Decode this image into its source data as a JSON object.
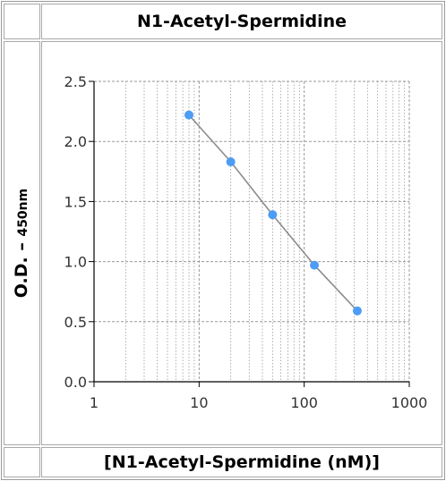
{
  "chart_data": {
    "type": "line",
    "title": "N1-Acetyl-Spermidine",
    "ylabel_main": "O.D. –",
    "ylabel_unit": "450nm",
    "xlabel": "[N1-Acetyl-Spermidine (nM)]",
    "x_scale": "log",
    "xlim": [
      1,
      1000
    ],
    "ylim": [
      0.0,
      2.5
    ],
    "x_ticks": [
      1,
      10,
      100,
      1000
    ],
    "x_tick_labels": [
      "1",
      "10",
      "100",
      "1000"
    ],
    "y_ticks": [
      0.0,
      0.5,
      1.0,
      1.5,
      2.0,
      2.5
    ],
    "y_tick_labels": [
      "0.0",
      "0.5",
      "1.0",
      "1.5",
      "2.0",
      "2.5"
    ],
    "grid": true,
    "series": [
      {
        "x": [
          8,
          20,
          50,
          125,
          320
        ],
        "y": [
          2.22,
          1.83,
          1.39,
          0.97,
          0.59
        ]
      }
    ],
    "colors": {
      "point": "#4d9cf5",
      "line": "#8c8c8c",
      "grid": "#9a9a9a",
      "axis": "#000000"
    }
  }
}
